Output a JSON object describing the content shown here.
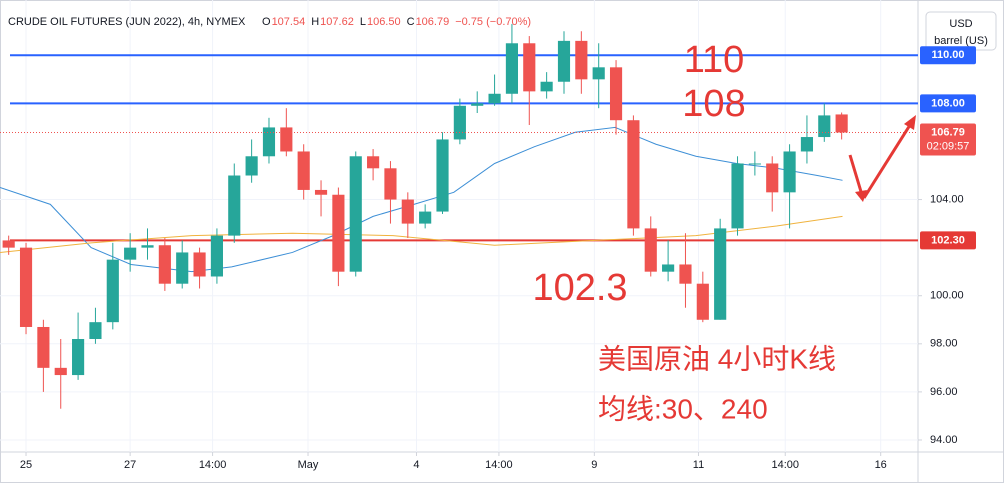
{
  "chart_data": {
    "type": "candlestick",
    "title": "CRUDE OIL FUTURES (JUN 2022), 4h, NYMEX",
    "legend_ohlc": [
      {
        "key": "O",
        "value": "107.54"
      },
      {
        "key": "H",
        "value": "107.62"
      },
      {
        "key": "L",
        "value": "106.50"
      },
      {
        "key": "C",
        "value": "106.79"
      }
    ],
    "change": "−0.75 (−0.70%)",
    "currency": "USD",
    "unit": "barrel (US)",
    "up_color": "#26a69a",
    "down_color": "#ef5350",
    "x": [
      1,
      3,
      5,
      7,
      9,
      11,
      13,
      15,
      17,
      19,
      21,
      23,
      25,
      27,
      29,
      31,
      33,
      35,
      37,
      39,
      41,
      43,
      45,
      47,
      49,
      51,
      53,
      55,
      57,
      59,
      61,
      63,
      65,
      67,
      69,
      71,
      73,
      75,
      77,
      79,
      81,
      83,
      85,
      87,
      89,
      91,
      93,
      95,
      97
    ],
    "open": [
      102.3,
      102.0,
      98.7,
      97.0,
      96.7,
      98.2,
      98.9,
      101.5,
      102.0,
      102.1,
      100.5,
      101.8,
      100.8,
      102.5,
      105.0,
      105.8,
      107.0,
      106.0,
      104.4,
      104.2,
      101.0,
      105.8,
      105.3,
      104.0,
      103.0,
      103.5,
      106.5,
      107.9,
      108.0,
      108.4,
      110.5,
      108.5,
      108.9,
      110.6,
      109.0,
      109.5,
      107.3,
      102.8,
      101.0,
      101.3,
      100.5,
      99.0,
      102.8,
      105.5,
      105.5,
      104.3,
      106.0,
      106.6,
      107.54
    ],
    "high": [
      102.5,
      102.2,
      99.0,
      98.2,
      99.3,
      99.5,
      102.2,
      102.6,
      102.8,
      102.4,
      102.3,
      102.0,
      102.8,
      105.5,
      106.5,
      107.4,
      107.8,
      106.3,
      104.8,
      104.5,
      106.0,
      106.1,
      105.6,
      104.3,
      103.8,
      106.8,
      108.2,
      108.5,
      109.2,
      111.3,
      110.8,
      109.3,
      111.0,
      111.0,
      110.5,
      109.8,
      107.5,
      103.3,
      102.3,
      102.6,
      101.0,
      103.2,
      105.8,
      106.0,
      105.8,
      106.3,
      107.5,
      108.0,
      107.62
    ],
    "low": [
      101.7,
      98.4,
      96.0,
      95.3,
      96.5,
      98.0,
      98.6,
      101.0,
      101.5,
      100.2,
      100.3,
      100.3,
      100.5,
      102.2,
      104.7,
      105.5,
      105.8,
      104.0,
      103.3,
      100.4,
      100.8,
      104.8,
      103.0,
      102.4,
      102.8,
      103.4,
      106.3,
      107.6,
      107.9,
      108.0,
      107.1,
      108.2,
      108.4,
      108.4,
      107.8,
      106.7,
      102.5,
      100.8,
      100.6,
      99.5,
      98.9,
      99.0,
      102.5,
      105.0,
      103.5,
      102.8,
      105.5,
      106.4,
      106.5
    ],
    "close": [
      102.0,
      98.7,
      97.0,
      96.7,
      98.2,
      98.9,
      101.5,
      102.0,
      102.1,
      100.5,
      101.8,
      100.8,
      102.5,
      105.0,
      105.8,
      107.0,
      106.0,
      104.4,
      104.2,
      101.0,
      105.8,
      105.3,
      104.0,
      103.0,
      103.5,
      106.5,
      107.9,
      108.0,
      108.4,
      110.5,
      108.5,
      108.9,
      110.6,
      109.0,
      109.5,
      107.3,
      102.8,
      101.0,
      101.3,
      100.5,
      99.0,
      102.8,
      105.5,
      105.5,
      104.3,
      106.0,
      106.6,
      107.5,
      106.79
    ],
    "series": [
      {
        "name": "MA30",
        "color": "#3d8fd6",
        "x": [
          0,
          5.8,
          10.5,
          15.1,
          22.1,
          26.7,
          33.7,
          38.4,
          43.0,
          47.7,
          52.3,
          57.0,
          61.6,
          66.3,
          70.9,
          75.6,
          80.2,
          84.9,
          89.5,
          94.2,
          97.1
        ],
        "values": [
          104.5,
          103.8,
          102.0,
          101.3,
          101.0,
          101.2,
          101.8,
          102.5,
          103.3,
          103.8,
          104.3,
          105.5,
          106.2,
          106.8,
          107.0,
          106.3,
          105.8,
          105.5,
          105.3,
          105.0,
          104.8
        ]
      },
      {
        "name": "MA240",
        "color": "#f0b33e",
        "x": [
          0,
          10.5,
          22.1,
          33.7,
          45.3,
          57.0,
          68.6,
          80.2,
          89.5,
          97.1
        ],
        "values": [
          101.8,
          102.2,
          102.5,
          102.6,
          102.5,
          102.1,
          102.3,
          102.5,
          102.9,
          103.3
        ]
      }
    ],
    "levels": [
      {
        "value": 110,
        "label": "110.00",
        "color": "#2962ff"
      },
      {
        "value": 108,
        "label": "108.00",
        "color": "#2962ff"
      },
      {
        "value": 102.3,
        "label": "102.30",
        "color": "#e53935"
      }
    ],
    "last_price": {
      "value": 106.79,
      "label": "106.79",
      "countdown": "02:09:57",
      "color": "#ef5350"
    },
    "xlim": [
      0,
      105.8
    ],
    "ylim": [
      93.5,
      112.3
    ],
    "yticks": [
      {
        "value": 94,
        "label": "94.00"
      },
      {
        "value": 96,
        "label": "96.00"
      },
      {
        "value": 98,
        "label": "98.00"
      },
      {
        "value": 100,
        "label": "100.00"
      },
      {
        "value": 104,
        "label": "104.00"
      }
    ],
    "xticks": [
      {
        "value": 3,
        "label": "25"
      },
      {
        "value": 15,
        "label": "27"
      },
      {
        "value": 24.5,
        "label": "14:00"
      },
      {
        "value": 35.5,
        "label": "May"
      },
      {
        "value": 48,
        "label": "4"
      },
      {
        "value": 57.5,
        "label": "14:00"
      },
      {
        "value": 68.5,
        "label": "9"
      },
      {
        "value": 80.5,
        "label": "11"
      },
      {
        "value": 90.5,
        "label": "14:00"
      },
      {
        "value": 101.5,
        "label": "16"
      }
    ],
    "grid": true,
    "annotations": [
      "110",
      "108",
      "102.3",
      "美国原油 4小时K线",
      "均线:30、240"
    ]
  }
}
